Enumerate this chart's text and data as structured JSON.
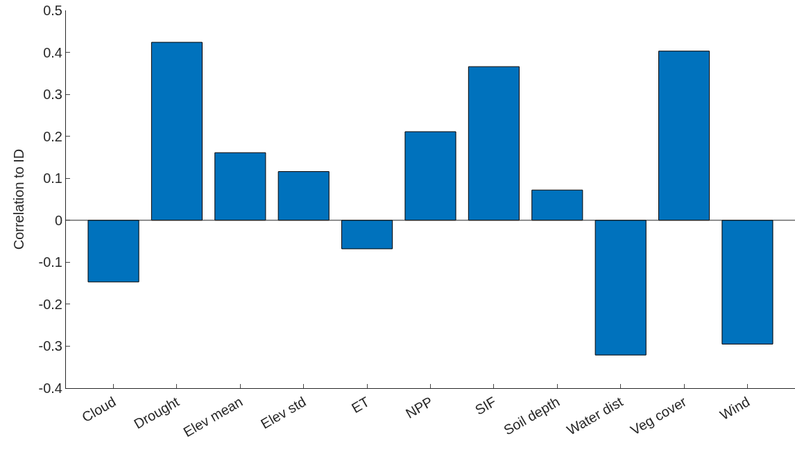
{
  "chart_data": {
    "type": "bar",
    "ylabel": "Correlation to ID",
    "categories": [
      "Cloud",
      "Drought",
      "Elev mean",
      "Elev std",
      "ET",
      "NPP",
      "SIF",
      "Soil depth",
      "Water dist",
      "Veg cover",
      "Wind"
    ],
    "values": [
      -0.147,
      0.424,
      0.161,
      0.116,
      -0.068,
      0.211,
      0.366,
      0.072,
      -0.321,
      0.403,
      -0.295
    ],
    "color": "#0072bd",
    "ylim": [
      -0.4,
      0.5
    ],
    "yticks": [
      -0.4,
      -0.3,
      -0.2,
      -0.1,
      0,
      0.1,
      0.2,
      0.3,
      0.4,
      0.5
    ],
    "ref_lines": [
      {
        "axis": "y",
        "value": 0,
        "color": "#262626"
      }
    ]
  }
}
